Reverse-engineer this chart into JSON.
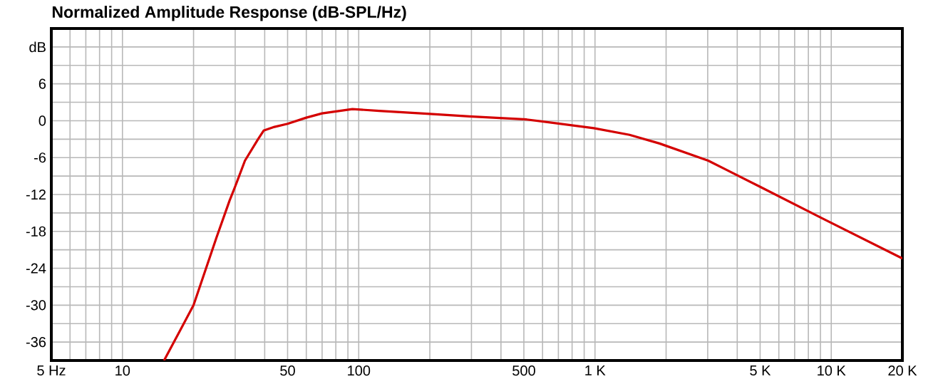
{
  "chart_data": {
    "type": "line",
    "title": "Normalized Amplitude Response (dB-SPL/Hz)",
    "log": "x",
    "grid": true,
    "marker": "none",
    "line_style": "solid",
    "xlim": [
      5,
      20000
    ],
    "ylim": [
      -39,
      15
    ],
    "xticks": [
      {
        "value": 5,
        "label": "5 Hz"
      },
      {
        "value": 6,
        "label": null
      },
      {
        "value": 7,
        "label": null
      },
      {
        "value": 8,
        "label": null
      },
      {
        "value": 9,
        "label": null
      },
      10,
      {
        "value": 20,
        "label": null
      },
      {
        "value": 30,
        "label": null
      },
      {
        "value": 40,
        "label": null
      },
      50,
      {
        "value": 60,
        "label": null
      },
      {
        "value": 70,
        "label": null
      },
      {
        "value": 80,
        "label": null
      },
      {
        "value": 90,
        "label": null
      },
      100,
      {
        "value": 200,
        "label": null
      },
      {
        "value": 300,
        "label": null
      },
      {
        "value": 400,
        "label": null
      },
      500,
      {
        "value": 600,
        "label": null
      },
      {
        "value": 700,
        "label": null
      },
      {
        "value": 800,
        "label": null
      },
      {
        "value": 900,
        "label": null
      },
      {
        "value": 1000,
        "label": "1 K"
      },
      {
        "value": 2000,
        "label": null
      },
      {
        "value": 3000,
        "label": null
      },
      {
        "value": 4000,
        "label": null
      },
      {
        "value": 5000,
        "label": "5 K"
      },
      {
        "value": 6000,
        "label": null
      },
      {
        "value": 7000,
        "label": null
      },
      {
        "value": 8000,
        "label": null
      },
      {
        "value": 9000,
        "label": null
      },
      {
        "value": 10000,
        "label": "10 K"
      },
      {
        "value": 20000,
        "label": "20 K"
      }
    ],
    "yticks": [
      -36,
      {
        "value": -33,
        "label": null
      },
      -30,
      {
        "value": -27,
        "label": null
      },
      -24,
      {
        "value": -21,
        "label": null
      },
      -18,
      {
        "value": -15,
        "label": null
      },
      -12,
      {
        "value": -9,
        "label": null
      },
      -6,
      {
        "value": -3,
        "label": null
      },
      0,
      {
        "value": 3,
        "label": null
      },
      6,
      {
        "value": 9,
        "label": null
      },
      {
        "value": 12,
        "label": "dB"
      }
    ],
    "series": [
      {
        "color": "#d40000",
        "x": [
          15,
          20,
          25,
          28.4,
          30,
          33,
          37.5,
          39.6,
          44,
          50,
          60,
          70,
          94,
          122,
          200,
          294,
          514,
          988,
          1400,
          1875,
          3015,
          4970,
          9180,
          20000
        ],
        "values": [
          -39,
          -30,
          -19,
          -13,
          -10.7,
          -6.5,
          -3,
          -1.6,
          -1,
          -0.5,
          0.5,
          1.2,
          1.9,
          1.6,
          1.1,
          0.7,
          0.2,
          -1.2,
          -2.3,
          -3.7,
          -6.5,
          -10.7,
          -15.9,
          -22.4
        ]
      }
    ]
  }
}
